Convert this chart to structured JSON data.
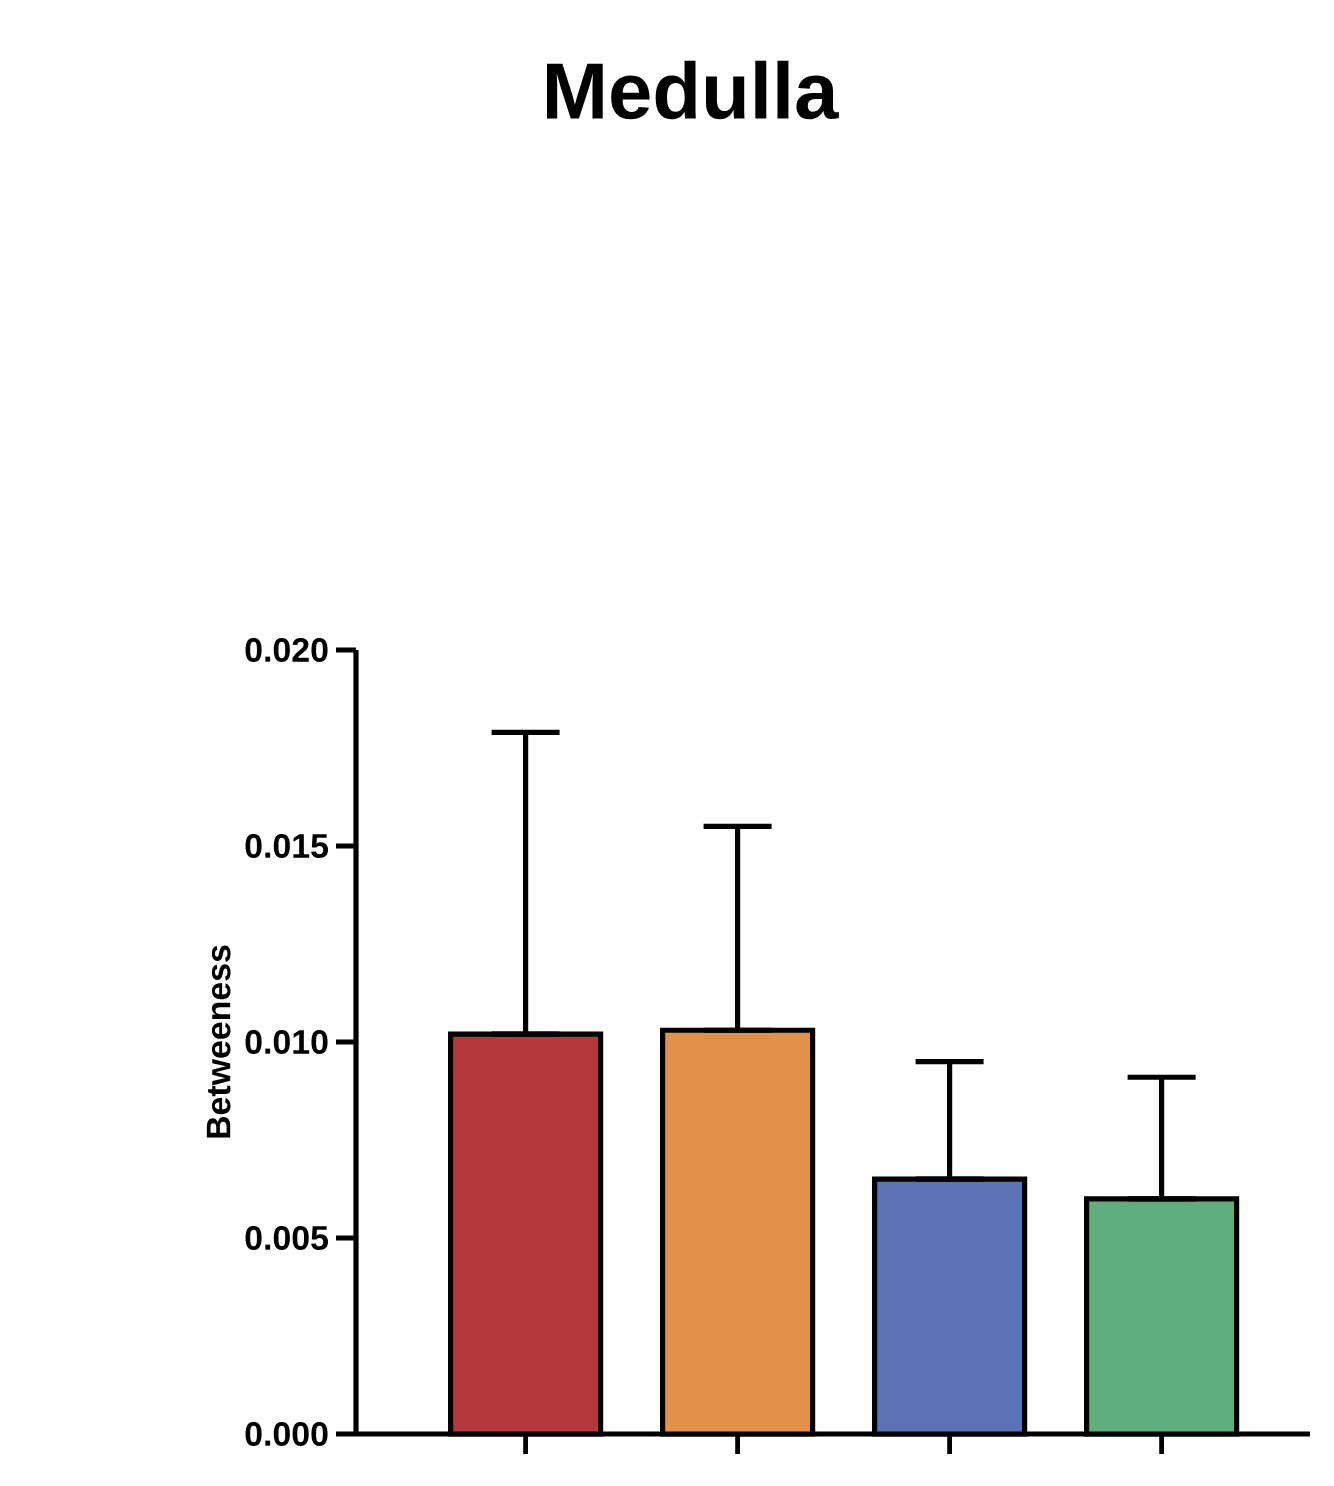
{
  "chart_data": {
    "type": "bar",
    "title": "Medulla",
    "ylabel": "Betweeness",
    "categories": [
      null,
      null,
      null,
      null
    ],
    "values": [
      0.0102,
      0.0103,
      0.0065,
      0.006
    ],
    "colors": [
      "#b5383c",
      "#e0914a",
      "#5c74b5",
      "#5fae7e"
    ],
    "errors": [
      [
        0.0102,
        0.0179
      ],
      [
        0.0103,
        0.0155
      ],
      [
        0.0065,
        0.0095
      ],
      [
        0.006,
        0.0091
      ]
    ],
    "ylim": [
      0,
      0.02
    ],
    "yticks": [
      {
        "value": 0,
        "label": "0.000"
      },
      {
        "value": 0.005,
        "label": "0.005"
      },
      {
        "value": 0.01,
        "label": "0.010"
      },
      {
        "value": 0.015,
        "label": "0.015"
      },
      {
        "value": 0.02,
        "label": "0.020"
      }
    ],
    "grid": false
  }
}
